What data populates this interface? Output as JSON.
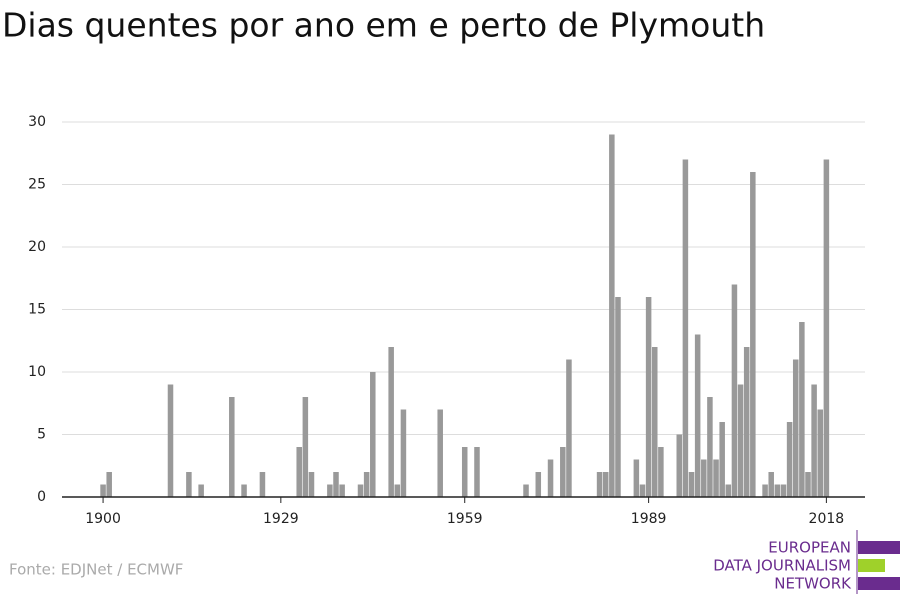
{
  "chart_data": {
    "type": "bar",
    "title": "Dias quentes por ano em e perto de Plymouth",
    "x": [
      1900,
      1901,
      1911,
      1914,
      1916,
      1921,
      1923,
      1926,
      1932,
      1933,
      1934,
      1937,
      1938,
      1939,
      1942,
      1943,
      1944,
      1947,
      1948,
      1949,
      1955,
      1959,
      1961,
      1969,
      1971,
      1973,
      1975,
      1976,
      1981,
      1982,
      1983,
      1984,
      1987,
      1988,
      1989,
      1990,
      1991,
      1994,
      1995,
      1996,
      1997,
      1998,
      1999,
      2000,
      2001,
      2002,
      2003,
      2004,
      2005,
      2006,
      2008,
      2009,
      2010,
      2011,
      2012,
      2013,
      2014,
      2015,
      2016,
      2017,
      2018
    ],
    "values": [
      1,
      2,
      9,
      2,
      1,
      8,
      1,
      2,
      4,
      8,
      2,
      1,
      2,
      1,
      1,
      2,
      10,
      12,
      1,
      7,
      7,
      4,
      4,
      1,
      2,
      3,
      4,
      11,
      2,
      2,
      29,
      16,
      3,
      1,
      16,
      12,
      4,
      5,
      27,
      2,
      13,
      3,
      8,
      3,
      6,
      1,
      17,
      9,
      12,
      26,
      1,
      2,
      1,
      1,
      6,
      11,
      14,
      2,
      9,
      7,
      27
    ],
    "color": "#999999",
    "xlim": [
      1893.3,
      2024.3
    ],
    "xticks": [
      1900,
      1929,
      1959,
      1989,
      2018
    ],
    "ylim": [
      0,
      30
    ],
    "yticks": [
      0,
      5,
      10,
      15,
      20,
      25,
      30
    ],
    "grid": true
  },
  "source": "Fonte: EDJNet / ECMWF",
  "logo": {
    "lines": [
      "EUROPEAN",
      "DATA JOURNALISM",
      "NETWORK"
    ]
  }
}
